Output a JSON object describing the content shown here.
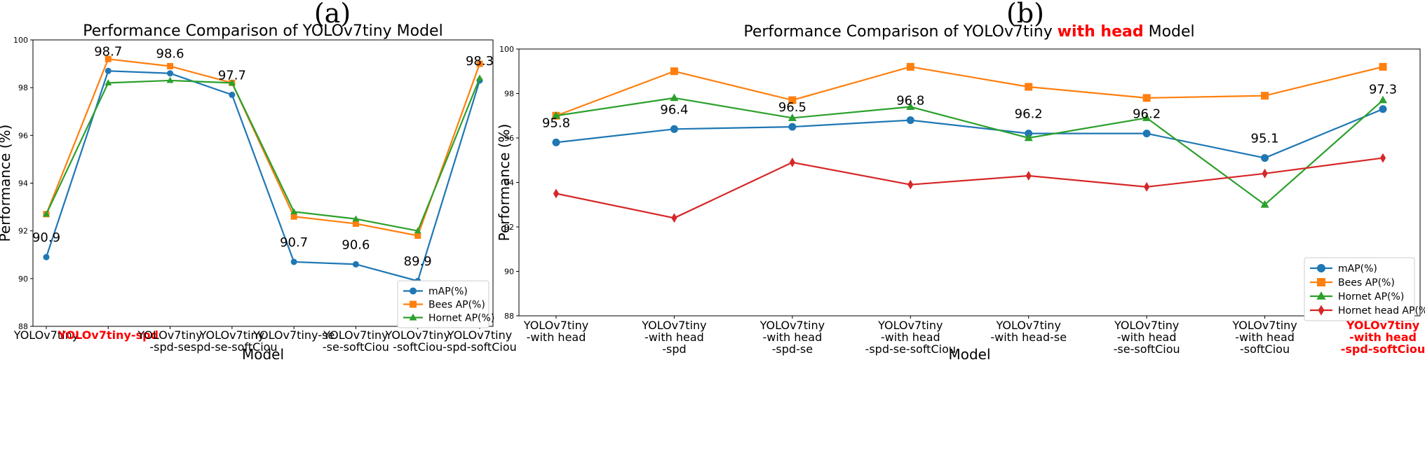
{
  "panels": {
    "a": "(a)",
    "b": "(b)"
  },
  "colors": {
    "map": "#1f77b4",
    "bees": "#ff7f0e",
    "hornet": "#2ca02c",
    "hornet_head": "#d62728",
    "highlight": "#ff0000"
  },
  "chart_data": [
    {
      "type": "line",
      "title": "Performance Comparison of YOLOv7tiny Model",
      "xlabel": "Model",
      "ylabel": "Performance (%)",
      "ylim": [
        88,
        100
      ],
      "yticks": [
        88,
        90,
        92,
        94,
        96,
        98,
        100
      ],
      "categories": [
        [
          "YOLOv7tiny"
        ],
        [
          "YOLOv7tiny-spd"
        ],
        [
          "YOLOv7tiny",
          "-spd-se"
        ],
        [
          "YOLOv7tiny",
          "-spd-se-softCiou"
        ],
        [
          "YOLOv7tiny-se"
        ],
        [
          "YOLOv7tiny",
          "-se-softCiou"
        ],
        [
          "YOLOv7tiny",
          "-softCiou"
        ],
        [
          "YOLOv7tiny",
          "-spd-softCiou"
        ]
      ],
      "highlight_category": 1,
      "series": [
        {
          "name": "mAP(%)",
          "color": "#1f77b4",
          "marker": "circle",
          "values": [
            90.9,
            98.7,
            98.6,
            97.7,
            90.7,
            90.6,
            89.9,
            98.3
          ]
        },
        {
          "name": "Bees AP(%)",
          "color": "#ff7f0e",
          "marker": "square",
          "values": [
            92.7,
            99.2,
            98.9,
            98.2,
            92.6,
            92.3,
            91.8,
            99.0
          ]
        },
        {
          "name": "Hornet AP(%)",
          "color": "#2ca02c",
          "marker": "triangle",
          "values": [
            92.7,
            98.2,
            98.3,
            98.2,
            92.8,
            92.5,
            92.0,
            98.4
          ]
        }
      ],
      "annotations": [
        "90.9",
        "98.7",
        "98.6",
        "97.7",
        "90.7",
        "90.6",
        "89.9",
        "98.3"
      ],
      "legend": "bottom-right"
    },
    {
      "type": "line",
      "title_parts": [
        "Performance Comparison of YOLOv7tiny ",
        "with head",
        " Model"
      ],
      "xlabel": "Model",
      "ylabel": "Performance (%)",
      "ylim": [
        88,
        100
      ],
      "yticks": [
        88,
        90,
        92,
        94,
        96,
        98,
        100
      ],
      "categories": [
        [
          "YOLOv7tiny",
          "-with head"
        ],
        [
          "YOLOv7tiny",
          "-with head",
          "-spd"
        ],
        [
          "YOLOv7tiny",
          "-with head",
          "-spd-se"
        ],
        [
          "YOLOv7tiny",
          "-with head",
          "-spd-se-softCiou"
        ],
        [
          "YOLOv7tiny",
          "-with head-se"
        ],
        [
          "YOLOv7tiny",
          "-with head",
          "-se-softCiou"
        ],
        [
          "YOLOv7tiny",
          "-with head",
          "-softCiou"
        ],
        [
          "YOLOv7tiny",
          "-with head",
          "-spd-softCiou"
        ]
      ],
      "highlight_category": 7,
      "series": [
        {
          "name": "mAP(%)",
          "color": "#1f77b4",
          "marker": "circle",
          "values": [
            95.8,
            96.4,
            96.5,
            96.8,
            96.2,
            96.2,
            95.1,
            97.3
          ]
        },
        {
          "name": "Bees AP(%)",
          "color": "#ff7f0e",
          "marker": "square",
          "values": [
            97.0,
            99.0,
            97.7,
            99.2,
            98.3,
            97.8,
            97.9,
            99.2
          ]
        },
        {
          "name": "Hornet AP(%)",
          "color": "#2ca02c",
          "marker": "triangle",
          "values": [
            97.0,
            97.8,
            96.9,
            97.4,
            96.0,
            96.9,
            93.0,
            97.7
          ]
        },
        {
          "name": "Hornet head AP(%)",
          "color": "#d62728",
          "marker": "diamond",
          "values": [
            93.5,
            92.4,
            94.9,
            93.9,
            94.3,
            93.8,
            94.4,
            95.1
          ]
        }
      ],
      "annotations": [
        "95.8",
        "96.4",
        "96.5",
        "96.8",
        "96.2",
        "96.2",
        "95.1",
        "97.3"
      ],
      "legend": "bottom-right"
    }
  ]
}
